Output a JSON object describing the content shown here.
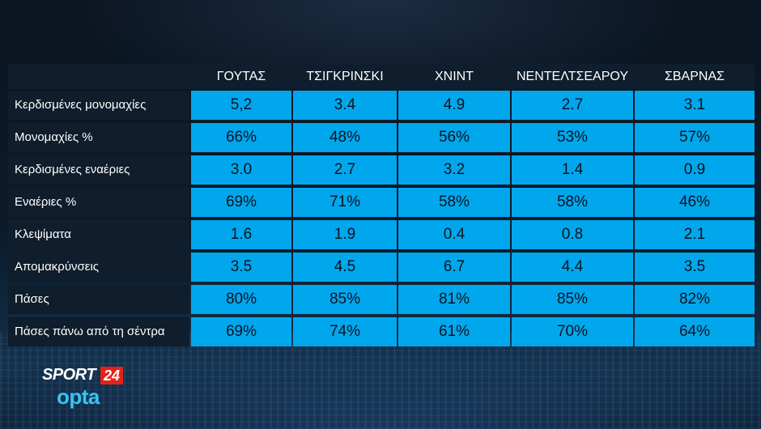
{
  "table": {
    "columns": [
      "ΓΟΥΤΑΣ",
      "ΤΣΙΓΚΡΙΝΣΚΙ",
      "ΧΝΙΝΤ",
      "ΝΕΝΤΕΛΤΣΕΑΡΟΥ",
      "ΣΒΑΡΝΑΣ"
    ],
    "rows": [
      {
        "label": "Κερδισμένες μονομαχίες",
        "values": [
          "5,2",
          "3.4",
          "4.9",
          "2.7",
          "3.1"
        ]
      },
      {
        "label": "Μονομαχίες %",
        "values": [
          "66%",
          "48%",
          "56%",
          "53%",
          "57%"
        ]
      },
      {
        "label": "Κερδισμένες εναέριες",
        "values": [
          "3.0",
          "2.7",
          "3.2",
          "1.4",
          "0.9"
        ]
      },
      {
        "label": "Εναέριες %",
        "values": [
          "69%",
          "71%",
          "58%",
          "58%",
          "46%"
        ]
      },
      {
        "label": "Κλεψίματα",
        "values": [
          "1.6",
          "1.9",
          "0.4",
          "0.8",
          "2.1"
        ]
      },
      {
        "label": "Απομακρύνσεις",
        "values": [
          "3.5",
          "4.5",
          "6.7",
          "4.4",
          "3.5"
        ]
      },
      {
        "label": "Πάσες",
        "values": [
          "80%",
          "85%",
          "81%",
          "85%",
          "82%"
        ]
      },
      {
        "label": "Πάσες πάνω από τη σέντρα",
        "values": [
          "69%",
          "74%",
          "61%",
          "70%",
          "64%"
        ]
      }
    ]
  },
  "logo": {
    "sport": "SPORT",
    "number": "24",
    "opta": "opta"
  },
  "colors": {
    "cell_blue": "#00a7ed",
    "label_dark": "#0f1d2c",
    "logo_red": "#e2231a",
    "opta_blue": "#35c5f4"
  }
}
